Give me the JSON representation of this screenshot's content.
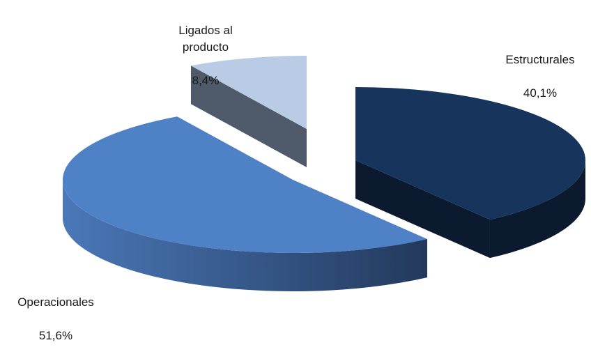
{
  "chart_data": {
    "type": "pie",
    "style": "3d-exploded",
    "title": "",
    "slices": [
      {
        "label": "Estructurales",
        "value": 40.1,
        "display": "40,1%",
        "color": "#17355c",
        "side_color": "#0b1a2e"
      },
      {
        "label": "Operacionales",
        "value": 51.6,
        "display": "51,6%",
        "color": "#4f81c6",
        "side_color": "#2d4f80"
      },
      {
        "label": "Ligados al\nproducto",
        "value": 8.4,
        "display": "8,4%",
        "color": "#b9cbe5",
        "side_color": "#4f5a6a"
      }
    ],
    "legend": "none",
    "labels_position": "outside"
  }
}
